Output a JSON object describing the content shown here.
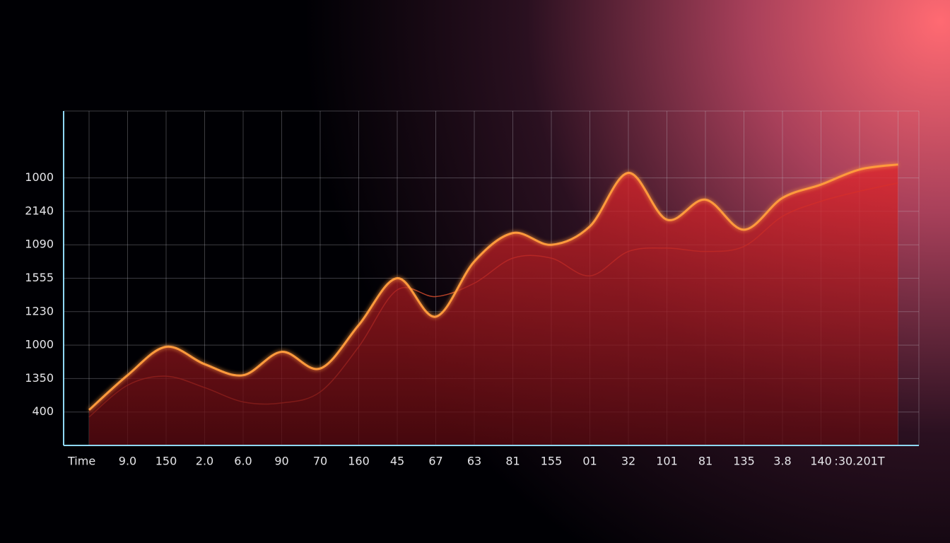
{
  "chart_data": {
    "type": "area",
    "x_label": "Time",
    "categories": [
      null,
      "9.0",
      "150",
      "2.0",
      "6.0",
      "90",
      "70",
      "160",
      "45",
      "67",
      "63",
      "81",
      "155",
      "01",
      "32",
      "101",
      "81",
      "135",
      "3.8",
      "140",
      ":30.201T",
      null
    ],
    "series": [
      {
        "color": "#ff9a3c",
        "values": [
          1.06,
          2.1,
          2.95,
          2.43,
          2.1,
          2.8,
          2.3,
          3.6,
          5.0,
          3.85,
          5.5,
          6.35,
          6.0,
          6.55,
          8.15,
          6.75,
          7.35,
          6.45,
          7.4,
          7.8,
          8.25,
          8.4
        ]
      },
      {
        "color": "#e0502e",
        "values": [
          0.85,
          1.8,
          2.07,
          1.73,
          1.3,
          1.27,
          1.6,
          2.95,
          4.65,
          4.45,
          4.85,
          5.6,
          5.6,
          5.07,
          5.8,
          5.9,
          5.8,
          5.95,
          6.85,
          7.3,
          7.6,
          7.85
        ]
      }
    ],
    "ylim": [
      0,
      10
    ],
    "yticks": [
      {
        "value": 1,
        "label": "400"
      },
      {
        "value": 2,
        "label": "1350"
      },
      {
        "value": 3,
        "label": "1000"
      },
      {
        "value": 4,
        "label": "1230"
      },
      {
        "value": 5,
        "label": "1555"
      },
      {
        "value": 6,
        "label": "1090"
      },
      {
        "value": 7,
        "label": "2140"
      },
      {
        "value": 8,
        "label": "1000"
      }
    ],
    "grid": true
  }
}
